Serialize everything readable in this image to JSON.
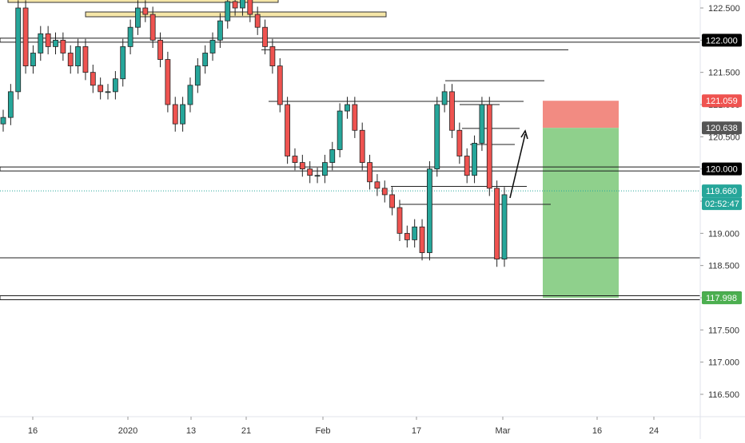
{
  "chart_data": {
    "type": "candlestick",
    "title": "",
    "xlabel": "",
    "ylabel": "",
    "ylim": [
      116.1,
      122.6
    ],
    "y_ticks": [
      "122.500",
      "122.000",
      "121.500",
      "121.000",
      "120.500",
      "120.000",
      "119.500",
      "119.000",
      "118.500",
      "118.000",
      "117.500",
      "117.000",
      "116.500"
    ],
    "x_ticks": [
      "16",
      "2020",
      "13",
      "21",
      "Feb",
      "17",
      "Mar",
      "16",
      "24"
    ],
    "price_labels": [
      {
        "value": 121.059,
        "text": "121.059",
        "color": "#ef5350"
      },
      {
        "value": 120.638,
        "text": "120.638",
        "color": "#555555"
      },
      {
        "value": 120.0,
        "text": "120.000",
        "color": "#000000"
      },
      {
        "value": 122.0,
        "text": "122.000",
        "color": "#000000"
      },
      {
        "value": 119.66,
        "text": "119.660",
        "color": "#26a69a"
      },
      {
        "value": 118.0,
        "text": "118.000",
        "color": "#000000"
      },
      {
        "value": 117.998,
        "text": "117.998",
        "color": "#4caf50"
      }
    ],
    "countdown": "02:52:47",
    "current_price": 119.66,
    "horizontal_levels": [
      122.0,
      120.0,
      118.0
    ],
    "position": {
      "entry": 120.638,
      "stop": 121.059,
      "target": 117.998
    },
    "series": [
      {
        "name": "",
        "close": [
          120.8,
          121.2,
          122.5,
          121.6,
          121.8,
          122.1,
          121.9,
          122.0,
          121.8,
          121.6,
          121.9,
          121.5,
          121.3,
          121.2,
          121.2,
          121.4,
          121.9,
          122.2,
          122.5,
          122.4,
          122.0,
          121.7,
          121.0,
          120.7,
          121.0,
          121.3,
          121.6,
          121.8,
          122.0,
          122.3,
          122.6,
          122.5,
          122.7,
          122.4,
          122.2,
          121.9,
          121.6,
          121.0,
          120.2,
          120.1,
          120.0,
          119.9,
          119.9,
          120.1,
          120.3,
          120.9,
          121.0,
          120.6,
          120.1,
          119.8,
          119.7,
          119.6,
          119.4,
          119.0,
          118.9,
          119.1,
          118.7,
          120.0,
          121.0,
          121.2,
          120.6,
          120.2,
          119.9,
          120.4,
          121.0,
          119.7,
          118.6,
          119.6
        ]
      }
    ],
    "annotations": {
      "arrow": "up",
      "zones": [
        "stop-zone",
        "target-zone"
      ]
    },
    "grid": false,
    "legend": "none"
  },
  "colors": {
    "up": "#26a69a",
    "down": "#ef5350",
    "stop_zone": "#f28b82",
    "target_zone": "#8fd08c",
    "level_line": "#1c1c1c",
    "zone_highlight": "#f5e6a8",
    "axis_text": "#333333"
  }
}
